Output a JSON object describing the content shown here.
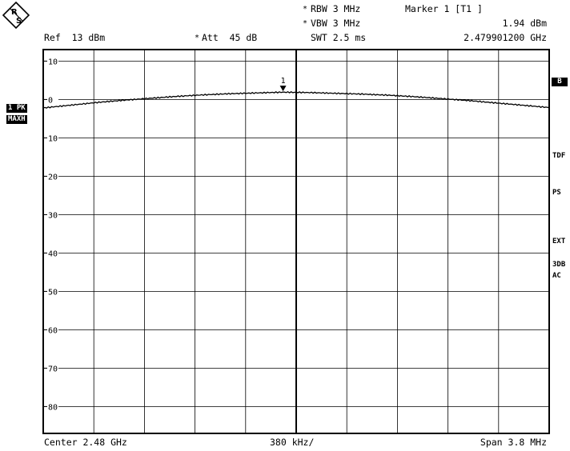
{
  "header": {
    "rbw_star": "*",
    "rbw": "RBW 3 MHz",
    "vbw_star": "*",
    "vbw": "VBW 3 MHz",
    "swt": "SWT 2.5 ms",
    "marker_title": "Marker 1 [T1 ]",
    "marker_level": "1.94 dBm",
    "marker_freq": "2.479901200 GHz",
    "ref": "Ref  13 dBm",
    "att_star": "*",
    "att": "Att  45 dB"
  },
  "left_labels": {
    "trace_mode": "1 PK",
    "trace_hold": "MAXH"
  },
  "right_labels": {
    "b": "B",
    "tdf": "TDF",
    "ps": "PS",
    "ext": "EXT",
    "db3": "3DB",
    "ac": "AC"
  },
  "footer": {
    "center": "Center 2.48 GHz",
    "div": "380 kHz/",
    "span": "Span 3.8 MHz"
  },
  "marker": {
    "label": "1",
    "x_ghz": 2.4799012,
    "level_dbm": 1.94
  },
  "colors": {
    "grid": "#000000",
    "trace": "#000000",
    "background": "#ffffff"
  },
  "icons": {
    "logo": "rohde-schwarz-logo-icon"
  },
  "chart_data": {
    "type": "line",
    "title": "",
    "xlabel": "",
    "ylabel": "",
    "xlim": [
      2.4781,
      2.4819
    ],
    "ylim": [
      -87,
      13
    ],
    "y_ticks": [
      10,
      0,
      -10,
      -20,
      -30,
      -40,
      -50,
      -60,
      -70,
      -80
    ],
    "y_tick_labels": [
      "10",
      "0",
      "10",
      "20",
      "30",
      "40",
      "50",
      "60",
      "70",
      "80"
    ],
    "x_divisions": 10,
    "grid": true,
    "series": [
      {
        "x": [
          2.4781,
          2.4783,
          2.4785,
          2.4787,
          2.4789,
          2.4791,
          2.4793,
          2.4795,
          2.4797,
          2.4799,
          2.4801,
          2.4803,
          2.4805,
          2.4807,
          2.4809,
          2.4811,
          2.4813,
          2.4815,
          2.4817,
          2.4819
        ],
        "values": [
          -2.2,
          -1.5,
          -0.8,
          -0.2,
          0.3,
          0.8,
          1.2,
          1.5,
          1.7,
          1.9,
          1.8,
          1.6,
          1.4,
          1.1,
          0.7,
          0.2,
          -0.3,
          -0.9,
          -1.5,
          -2.1
        ]
      }
    ]
  }
}
